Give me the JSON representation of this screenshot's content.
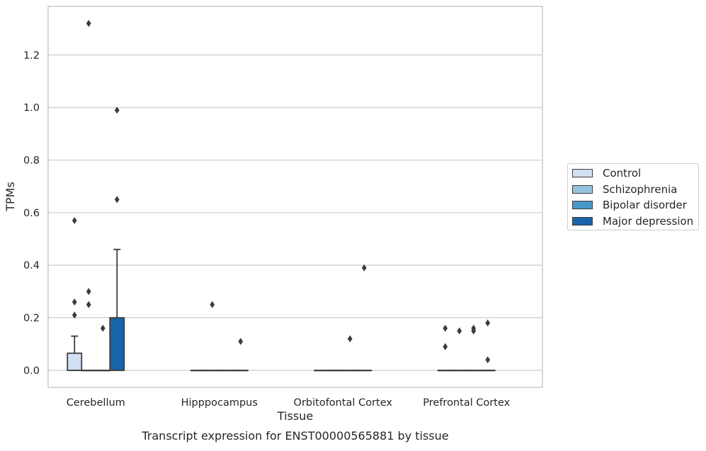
{
  "chart_data": {
    "type": "box",
    "title": "Transcript expression for ENST00000565881 by tissue",
    "xlabel": "Tissue",
    "ylabel": "TPMs",
    "ylim": [
      -0.065,
      1.385
    ],
    "yticks": [
      0.0,
      0.2,
      0.4,
      0.6,
      0.8,
      1.0,
      1.2
    ],
    "ytick_labels": [
      "0.0",
      "0.2",
      "0.4",
      "0.6",
      "0.8",
      "1.0",
      "1.2"
    ],
    "grid": "horizontal",
    "legend_placement": "right",
    "categories": [
      "Cerebellum",
      "Hipppocampus",
      "Orbitofontal Cortex",
      "Prefrontal Cortex"
    ],
    "series": [
      {
        "name": "Control",
        "color": "#d0e1f2",
        "boxes": [
          {
            "q1": 0.0,
            "median": 0.0,
            "q3": 0.065,
            "whisker_low": 0.0,
            "whisker_high": 0.13,
            "outliers": [
              0.57,
              0.26,
              0.21
            ]
          },
          {
            "q1": 0.0,
            "median": 0.0,
            "q3": 0.0,
            "whisker_low": 0.0,
            "whisker_high": 0.0,
            "outliers": []
          },
          {
            "q1": 0.0,
            "median": 0.0,
            "q3": 0.0,
            "whisker_low": 0.0,
            "whisker_high": 0.0,
            "outliers": []
          },
          {
            "q1": 0.0,
            "median": 0.0,
            "q3": 0.0,
            "whisker_low": 0.0,
            "whisker_high": 0.0,
            "outliers": [
              0.16,
              0.09
            ]
          }
        ]
      },
      {
        "name": "Schizophrenia",
        "color": "#94c4df",
        "boxes": [
          {
            "q1": 0.0,
            "median": 0.0,
            "q3": 0.0,
            "whisker_low": 0.0,
            "whisker_high": 0.0,
            "outliers": [
              1.32,
              0.3,
              0.25
            ]
          },
          {
            "q1": 0.0,
            "median": 0.0,
            "q3": 0.0,
            "whisker_low": 0.0,
            "whisker_high": 0.0,
            "outliers": [
              0.25
            ]
          },
          {
            "q1": 0.0,
            "median": 0.0,
            "q3": 0.0,
            "whisker_low": 0.0,
            "whisker_high": 0.0,
            "outliers": []
          },
          {
            "q1": 0.0,
            "median": 0.0,
            "q3": 0.0,
            "whisker_low": 0.0,
            "whisker_high": 0.0,
            "outliers": [
              0.15
            ]
          }
        ]
      },
      {
        "name": "Bipolar disorder",
        "color": "#4a98c9",
        "boxes": [
          {
            "q1": 0.0,
            "median": 0.0,
            "q3": 0.0,
            "whisker_low": 0.0,
            "whisker_high": 0.0,
            "outliers": [
              0.16
            ]
          },
          {
            "q1": 0.0,
            "median": 0.0,
            "q3": 0.0,
            "whisker_low": 0.0,
            "whisker_high": 0.0,
            "outliers": []
          },
          {
            "q1": 0.0,
            "median": 0.0,
            "q3": 0.0,
            "whisker_low": 0.0,
            "whisker_high": 0.0,
            "outliers": [
              0.12
            ]
          },
          {
            "q1": 0.0,
            "median": 0.0,
            "q3": 0.0,
            "whisker_low": 0.0,
            "whisker_high": 0.0,
            "outliers": [
              0.16,
              0.15
            ]
          }
        ]
      },
      {
        "name": "Major depression",
        "color": "#1764ab",
        "boxes": [
          {
            "q1": 0.0,
            "median": 0.0,
            "q3": 0.2,
            "whisker_low": 0.0,
            "whisker_high": 0.46,
            "outliers": [
              0.99,
              0.65
            ]
          },
          {
            "q1": 0.0,
            "median": 0.0,
            "q3": 0.0,
            "whisker_low": 0.0,
            "whisker_high": 0.0,
            "outliers": [
              0.11
            ]
          },
          {
            "q1": 0.0,
            "median": 0.0,
            "q3": 0.0,
            "whisker_low": 0.0,
            "whisker_high": 0.0,
            "outliers": [
              0.39
            ]
          },
          {
            "q1": 0.0,
            "median": 0.0,
            "q3": 0.0,
            "whisker_low": 0.0,
            "whisker_high": 0.0,
            "outliers": [
              0.18,
              0.04
            ]
          }
        ]
      }
    ]
  }
}
